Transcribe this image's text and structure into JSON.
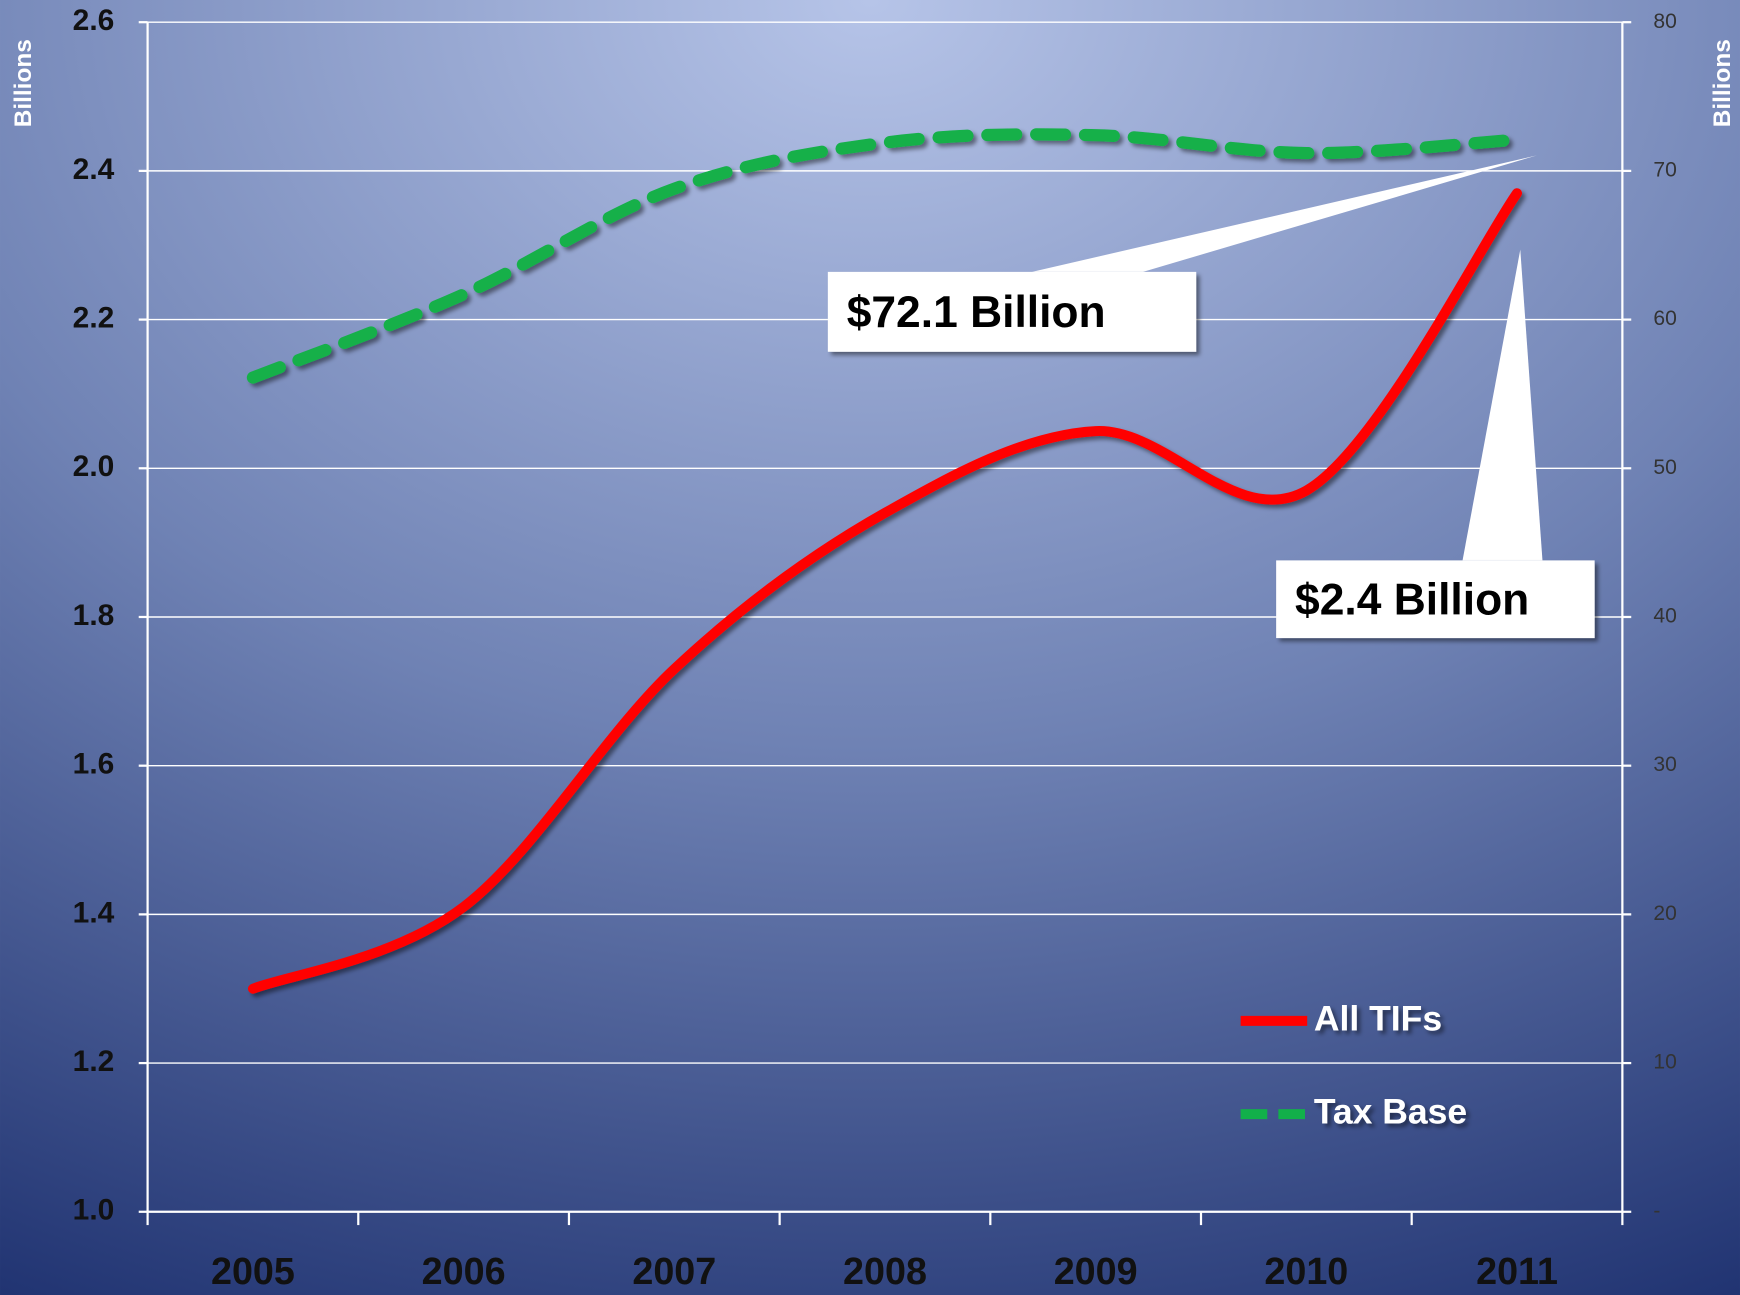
{
  "chart_data": {
    "type": "line",
    "y_label": "Billions",
    "y2_label": "Billions",
    "categories": [
      "2005",
      "2006",
      "2007",
      "2008",
      "2009",
      "2010",
      "2011"
    ],
    "series": [
      {
        "name": "All TIFs",
        "color": "#ff0000",
        "values": [
          1.3,
          1.41,
          1.73,
          1.94,
          2.05,
          1.97,
          2.37
        ]
      },
      {
        "name": "Tax Base",
        "color": "#12b04a",
        "axis": "y2",
        "dashed": true,
        "values": [
          56.1,
          61.7,
          68.8,
          71.9,
          72.4,
          71.2,
          72.1
        ]
      }
    ],
    "ylim": [
      1.0,
      2.6
    ],
    "yticks": [
      {
        "value": 1.0,
        "label": "1.0"
      },
      1.2,
      1.4,
      1.6,
      1.8,
      {
        "value": 2.0,
        "label": "2.0"
      },
      2.2,
      2.4,
      2.6
    ],
    "y2lim": [
      0,
      80
    ],
    "y2ticks": [
      {
        "value": 0,
        "label": "-"
      },
      10,
      20,
      30,
      40,
      50,
      60,
      70,
      80
    ],
    "grid": true,
    "annotations": [
      "$72.1 Billion",
      "$2.4 Billion"
    ]
  }
}
